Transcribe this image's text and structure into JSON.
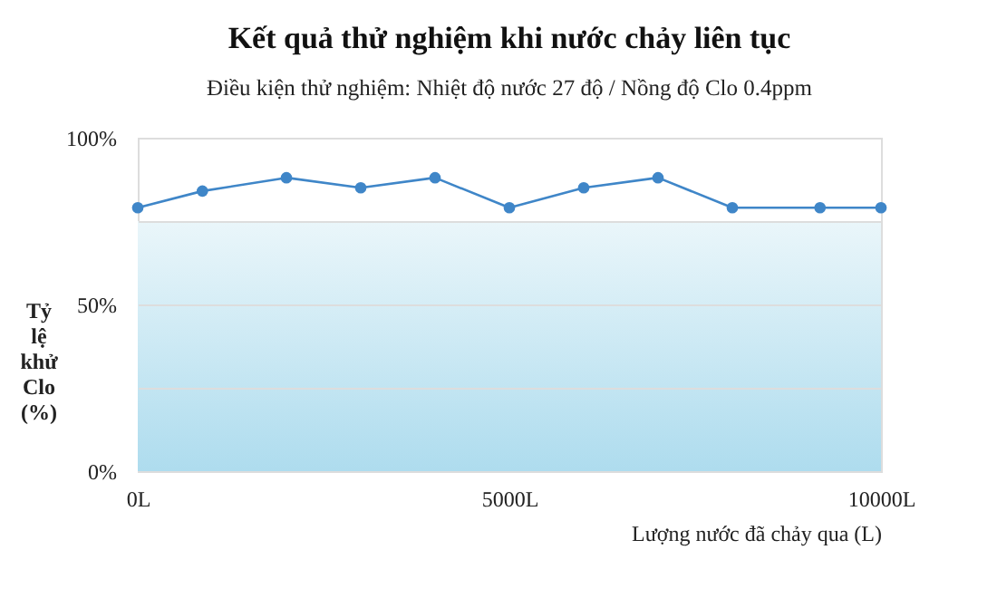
{
  "chart_data": {
    "type": "line",
    "title": "Kết quả thử nghiệm khi nước chảy liên tục",
    "subtitle": "Điều kiện thử nghiệm: Nhiệt độ nước 27 độ / Nồng độ Clo 0.4ppm",
    "xlabel": "Lượng nước đã chảy qua (L)",
    "ylabel": "Tỷ lệ khử Clo (%)",
    "x": [
      0,
      870,
      2000,
      3000,
      4000,
      5000,
      6000,
      7000,
      8000,
      9180,
      10000
    ],
    "series": [
      {
        "color": "#3f86c8",
        "values": [
          79,
          84,
          88,
          85,
          88,
          79,
          85,
          88,
          79,
          79,
          79
        ]
      }
    ],
    "xlim": [
      0,
      10000
    ],
    "xticks": [
      {
        "value": 0,
        "label": "0L"
      },
      {
        "value": 5000,
        "label": "5000L"
      },
      {
        "value": 10000,
        "label": "10000L"
      }
    ],
    "ylim": [
      0,
      100
    ],
    "yticks": [
      {
        "value": 0,
        "label": "0%"
      },
      {
        "value": 25,
        "label": null
      },
      {
        "value": 50,
        "label": "50%"
      },
      {
        "value": 75,
        "label": null
      },
      {
        "value": 100,
        "label": "100%"
      }
    ],
    "bands": [
      {
        "axis": "y",
        "from": 0,
        "to": 75,
        "color": "#aedcee"
      }
    ],
    "grid": "y",
    "marker": "circle",
    "line_style": "solid"
  }
}
